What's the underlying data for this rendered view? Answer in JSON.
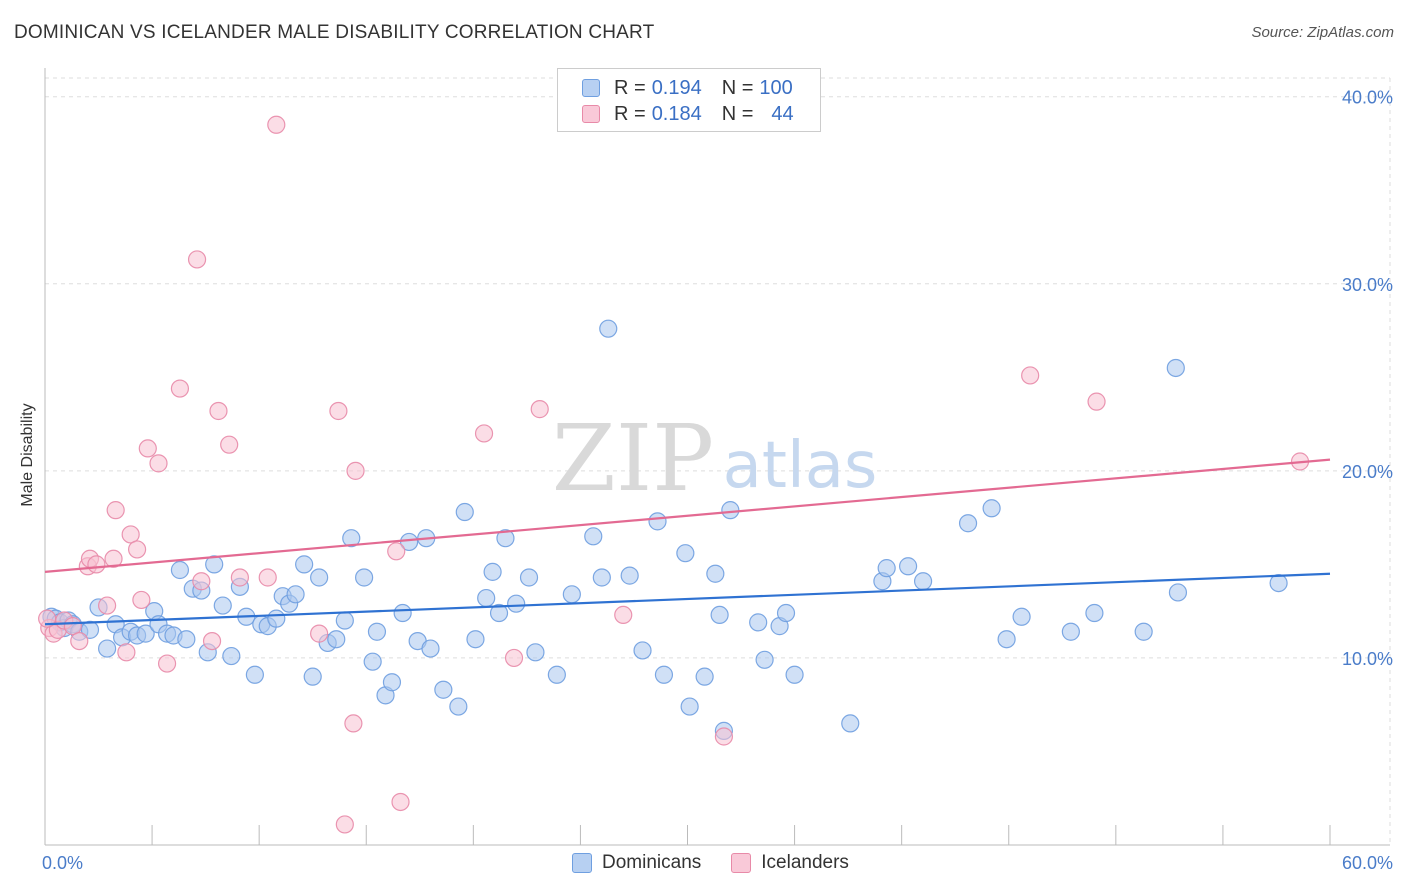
{
  "header": {
    "title": "DOMINICAN VS ICELANDER MALE DISABILITY CORRELATION CHART",
    "source": "Source: ZipAtlas.com"
  },
  "watermark": {
    "zip": "ZIP",
    "atlas": "atlas"
  },
  "stats_legend": {
    "rows": [
      {
        "r_label": "R =",
        "r_value": "0.194",
        "n_label": "N =",
        "n_value": "100",
        "color": "#6f9fe0",
        "fill": "#b7d0f2"
      },
      {
        "r_label": "R =",
        "r_value": "0.184",
        "n_label": "N =",
        "n_value": "44",
        "color": "#e88aa8",
        "fill": "#f9c9d8"
      }
    ]
  },
  "colors": {
    "blue_point_fill": "#a9c6ee",
    "blue_point_stroke": "#6f9fe0",
    "blue_line": "#2f72d2",
    "pink_point_fill": "#f7c1d2",
    "pink_point_stroke": "#e88aa8",
    "pink_line": "#e36a92",
    "tick_label": "#4a7cc9",
    "grid": "#dddddd"
  },
  "chart_data": {
    "type": "scatter",
    "title": "DOMINICAN VS ICELANDER MALE DISABILITY CORRELATION CHART",
    "xlabel": "",
    "ylabel": "Male Disability",
    "xlim": [
      0,
      60
    ],
    "ylim": [
      0,
      41
    ],
    "x_tick_labels": [
      "0.0%",
      "60.0%"
    ],
    "y_ticks": [
      10,
      20,
      30,
      40
    ],
    "y_tick_labels": [
      "10.0%",
      "20.0%",
      "30.0%",
      "40.0%"
    ],
    "legend_position": "bottom",
    "grid": true,
    "series": [
      {
        "name": "Dominicans",
        "trend": [
          [
            0,
            11.8
          ],
          [
            60,
            14.5
          ]
        ],
        "points": [
          [
            0.3,
            12.2
          ],
          [
            0.5,
            12.1
          ],
          [
            0.7,
            11.9
          ],
          [
            0.9,
            11.6
          ],
          [
            1.1,
            12.0
          ],
          [
            1.3,
            11.8
          ],
          [
            1.6,
            11.4
          ],
          [
            2.1,
            11.5
          ],
          [
            2.5,
            12.7
          ],
          [
            2.9,
            10.5
          ],
          [
            3.3,
            11.8
          ],
          [
            3.6,
            11.1
          ],
          [
            4.0,
            11.4
          ],
          [
            4.3,
            11.2
          ],
          [
            4.7,
            11.3
          ],
          [
            5.1,
            12.5
          ],
          [
            5.3,
            11.8
          ],
          [
            5.7,
            11.3
          ],
          [
            6.0,
            11.2
          ],
          [
            6.3,
            14.7
          ],
          [
            6.6,
            11.0
          ],
          [
            6.9,
            13.7
          ],
          [
            7.3,
            13.6
          ],
          [
            7.6,
            10.3
          ],
          [
            7.9,
            15.0
          ],
          [
            8.3,
            12.8
          ],
          [
            8.7,
            10.1
          ],
          [
            9.1,
            13.8
          ],
          [
            9.4,
            12.2
          ],
          [
            9.8,
            9.1
          ],
          [
            10.1,
            11.8
          ],
          [
            10.4,
            11.7
          ],
          [
            10.8,
            12.1
          ],
          [
            11.1,
            13.3
          ],
          [
            11.4,
            12.9
          ],
          [
            11.7,
            13.4
          ],
          [
            12.1,
            15.0
          ],
          [
            12.5,
            9.0
          ],
          [
            12.8,
            14.3
          ],
          [
            13.2,
            10.8
          ],
          [
            13.6,
            11.0
          ],
          [
            14.0,
            12.0
          ],
          [
            14.3,
            16.4
          ],
          [
            14.9,
            14.3
          ],
          [
            15.3,
            9.8
          ],
          [
            15.5,
            11.4
          ],
          [
            15.9,
            8.0
          ],
          [
            16.2,
            8.7
          ],
          [
            16.7,
            12.4
          ],
          [
            17.0,
            16.2
          ],
          [
            17.4,
            10.9
          ],
          [
            17.8,
            16.4
          ],
          [
            18.0,
            10.5
          ],
          [
            18.6,
            8.3
          ],
          [
            19.3,
            7.4
          ],
          [
            19.6,
            17.8
          ],
          [
            20.1,
            11.0
          ],
          [
            20.6,
            13.2
          ],
          [
            20.9,
            14.6
          ],
          [
            21.2,
            12.4
          ],
          [
            21.5,
            16.4
          ],
          [
            22.0,
            12.9
          ],
          [
            22.6,
            14.3
          ],
          [
            22.9,
            10.3
          ],
          [
            23.9,
            9.1
          ],
          [
            24.6,
            13.4
          ],
          [
            25.6,
            16.5
          ],
          [
            26.0,
            14.3
          ],
          [
            26.3,
            27.6
          ],
          [
            27.3,
            14.4
          ],
          [
            27.9,
            10.4
          ],
          [
            28.6,
            17.3
          ],
          [
            28.9,
            9.1
          ],
          [
            29.9,
            15.6
          ],
          [
            30.1,
            7.4
          ],
          [
            30.8,
            9.0
          ],
          [
            31.3,
            14.5
          ],
          [
            31.5,
            12.3
          ],
          [
            31.7,
            6.1
          ],
          [
            32.0,
            17.9
          ],
          [
            33.3,
            11.9
          ],
          [
            33.6,
            9.9
          ],
          [
            34.3,
            11.7
          ],
          [
            34.6,
            12.4
          ],
          [
            35.0,
            9.1
          ],
          [
            37.6,
            6.5
          ],
          [
            39.1,
            14.1
          ],
          [
            39.3,
            14.8
          ],
          [
            40.3,
            14.9
          ],
          [
            41.0,
            14.1
          ],
          [
            43.1,
            17.2
          ],
          [
            44.2,
            18.0
          ],
          [
            44.9,
            11.0
          ],
          [
            45.6,
            12.2
          ],
          [
            47.9,
            11.4
          ],
          [
            49.0,
            12.4
          ],
          [
            51.3,
            11.4
          ],
          [
            52.8,
            25.5
          ],
          [
            52.9,
            13.5
          ],
          [
            57.6,
            14.0
          ]
        ]
      },
      {
        "name": "Icelanders",
        "trend": [
          [
            0,
            14.6
          ],
          [
            60,
            20.6
          ]
        ],
        "points": [
          [
            0.2,
            11.6
          ],
          [
            0.4,
            11.3
          ],
          [
            0.6,
            11.5
          ],
          [
            0.9,
            12.0
          ],
          [
            1.3,
            11.7
          ],
          [
            1.6,
            10.9
          ],
          [
            2.0,
            14.9
          ],
          [
            2.1,
            15.3
          ],
          [
            2.4,
            15.0
          ],
          [
            2.9,
            12.8
          ],
          [
            3.2,
            15.3
          ],
          [
            3.3,
            17.9
          ],
          [
            3.8,
            10.3
          ],
          [
            4.0,
            16.6
          ],
          [
            4.3,
            15.8
          ],
          [
            4.5,
            13.1
          ],
          [
            4.8,
            21.2
          ],
          [
            5.3,
            20.4
          ],
          [
            5.7,
            9.7
          ],
          [
            6.3,
            24.4
          ],
          [
            7.1,
            31.3
          ],
          [
            7.3,
            14.1
          ],
          [
            7.8,
            10.9
          ],
          [
            8.1,
            23.2
          ],
          [
            8.6,
            21.4
          ],
          [
            9.1,
            14.3
          ],
          [
            10.4,
            14.3
          ],
          [
            10.8,
            38.5
          ],
          [
            12.8,
            11.3
          ],
          [
            13.7,
            23.2
          ],
          [
            14.0,
            1.1
          ],
          [
            14.4,
            6.5
          ],
          [
            14.5,
            20.0
          ],
          [
            16.4,
            15.7
          ],
          [
            16.6,
            2.3
          ],
          [
            20.5,
            22.0
          ],
          [
            21.9,
            10.0
          ],
          [
            23.1,
            23.3
          ],
          [
            27.0,
            12.3
          ],
          [
            31.7,
            5.8
          ],
          [
            46.0,
            25.1
          ],
          [
            49.1,
            23.7
          ],
          [
            58.6,
            20.5
          ],
          [
            0.1,
            12.1
          ]
        ]
      }
    ]
  }
}
